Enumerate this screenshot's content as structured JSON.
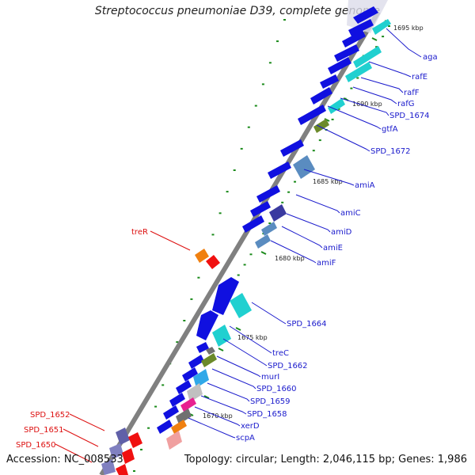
{
  "title": "Streptococcus pneumoniae D39, complete genome",
  "footer": {
    "accession": "Accession: NC_008533",
    "summary": "Topology: circular; Length: 2,046,115 bp; Genes: 1,986"
  },
  "colors": {
    "backbone": "#808080",
    "forward_strand": "#1010e0",
    "cds_cyan": "#20d0d0",
    "cds_steel": "#5a8cc0",
    "cds_olive": "#6b8a2a",
    "cds_dark_blue": "#3a3aa0",
    "cds_light_blue": "#30a8e8",
    "cds_grey": "#c0c0c0",
    "cds_magenta": "#e82090",
    "cds_dark_grey": "#707070",
    "cds_salmon": "#f0a0a0",
    "cds_orange": "#f08010",
    "cds_red": "#f01010",
    "cds_lavender": "#8080c0",
    "tick": "#1a8a1a",
    "label_blue": "#1a1acc",
    "label_red": "#dd1010"
  },
  "scale": [
    "1695 kbp",
    "1690 kbp",
    "1685 kbp",
    "1680 kbp",
    "1675 kbp",
    "1670 kbp"
  ],
  "genes_right": [
    "aga",
    "rafE",
    "rafF",
    "rafG",
    "SPD_1674",
    "gtfA",
    "SPD_1672",
    "amiA",
    "amiC",
    "amiD",
    "amiE",
    "amiF",
    "SPD_1664",
    "treC",
    "SPD_1662",
    "murI",
    "SPD_1660",
    "SPD_1659",
    "SPD_1658",
    "xerD",
    "scpA"
  ],
  "genes_left": [
    "treR",
    "SPD_1652",
    "SPD_1651",
    "SPD_1650"
  ]
}
